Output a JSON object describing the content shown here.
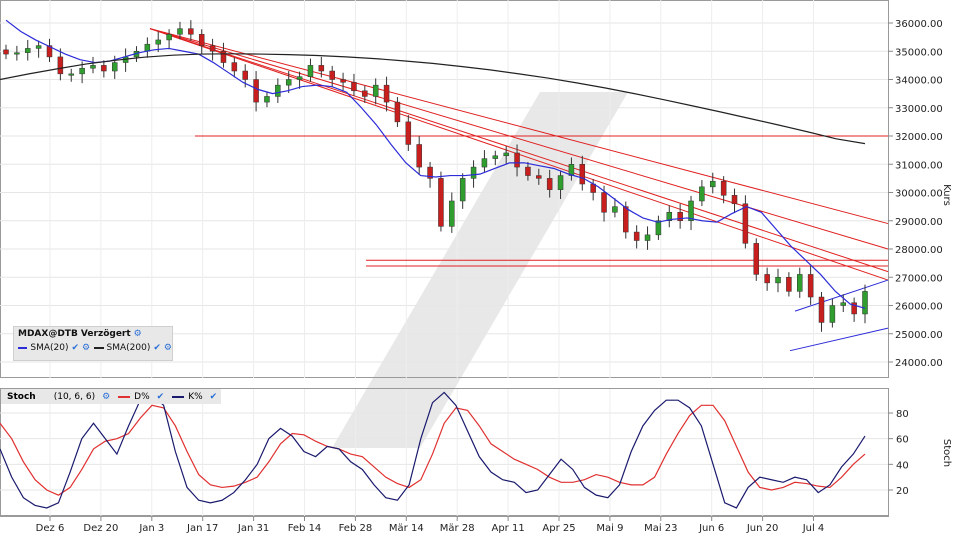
{
  "chart_data": [
    {
      "type": "candlestick",
      "title": "MDAX@DTB Verzögert",
      "ylabel": "Kurs",
      "ylim": [
        23400,
        36800
      ],
      "yticks": [
        "36000.00",
        "35000.00",
        "34000.00",
        "33000.00",
        "32000.00",
        "31000.00",
        "30000.00",
        "29000.00",
        "28000.00",
        "27000.00",
        "26000.00",
        "25000.00",
        "24000.00"
      ],
      "legend": [
        {
          "name": "SMA(20)",
          "color": "#2b2bd8"
        },
        {
          "name": "SMA(200)",
          "color": "#222222"
        }
      ],
      "series": [
        {
          "name": "SMA(20)",
          "color": "#2b2bd8",
          "values": [
            36100,
            35700,
            35400,
            35150,
            34900,
            34700,
            34600,
            34650,
            34800,
            34950,
            35050,
            35100,
            35000,
            34900,
            34600,
            34250,
            33900,
            33650,
            33500,
            33600,
            33750,
            33800,
            33750,
            33550,
            33000,
            32400,
            31700,
            31050,
            30600,
            30550,
            30600,
            30600,
            30650,
            30850,
            31050,
            31050,
            30950,
            30850,
            30650,
            30500,
            30200,
            29800,
            29400,
            29100,
            28950,
            29050,
            29100,
            29000,
            28950,
            29250,
            29500,
            29300,
            28700,
            28100,
            27600,
            27100,
            26500,
            26050,
            25900
          ]
        },
        {
          "name": "SMA(200)",
          "color": "#222222",
          "values": [
            34000,
            34200,
            34380,
            34550,
            34680,
            34790,
            34860,
            34900,
            34910,
            34900,
            34880,
            34850,
            34800,
            34740,
            34660,
            34570,
            34460,
            34340,
            34200,
            34050,
            33880,
            33700,
            33500,
            33290,
            33070,
            32850,
            32620,
            32390,
            32150,
            31900,
            31730
          ]
        }
      ],
      "candles": {
        "color_up": "#2f9e2f",
        "color_down": "#c81e1e",
        "close": [
          34900,
          34950,
          35100,
          35200,
          34800,
          34200,
          34200,
          34400,
          34500,
          34300,
          34600,
          34800,
          35000,
          35250,
          35400,
          35600,
          35800,
          35600,
          35200,
          35000,
          34600,
          34300,
          34000,
          33200,
          33400,
          33800,
          34000,
          34100,
          34500,
          34300,
          34000,
          33900,
          33600,
          33400,
          33800,
          33200,
          32500,
          31700,
          30900,
          30500,
          28800,
          29700,
          30500,
          30900,
          31200,
          31300,
          31400,
          30900,
          30600,
          30500,
          30100,
          30600,
          31000,
          30300,
          30000,
          29300,
          29500,
          28600,
          28300,
          28500,
          29000,
          29300,
          29000,
          29700,
          30200,
          30400,
          29900,
          29600,
          28200,
          27100,
          26800,
          27000,
          26500,
          27100,
          26300,
          25400,
          26000,
          26100,
          25700,
          26500
        ]
      },
      "overlays": {
        "resistance_levels": [
          32000,
          27600,
          27400
        ],
        "trend_channel": {
          "upper": [
            25800,
            26900
          ],
          "lower": [
            24400,
            25200
          ]
        }
      },
      "xticks": [
        "Dez 6",
        "Dez 20",
        "Jan 3",
        "Jan 17",
        "Jan 31",
        "Feb 14",
        "Feb 28",
        "Mär 14",
        "Mär 28",
        "Apr 11",
        "Apr 25",
        "Mai 9",
        "Mai 23",
        "Jun 6",
        "Jun 20",
        "Jul 4"
      ]
    },
    {
      "type": "line",
      "title": "Stoch",
      "params": "(10, 6, 6)",
      "ylabel": "Stoch",
      "ylim": [
        0,
        100
      ],
      "yticks": [
        "80",
        "60",
        "40",
        "20"
      ],
      "series": [
        {
          "name": "D%",
          "color": "#e03030",
          "values": [
            72,
            60,
            42,
            28,
            20,
            16,
            22,
            36,
            52,
            58,
            60,
            64,
            76,
            86,
            84,
            70,
            50,
            32,
            24,
            22,
            23,
            26,
            30,
            42,
            56,
            64,
            63,
            58,
            54,
            52,
            48,
            46,
            38,
            30,
            25,
            22,
            28,
            48,
            72,
            84,
            82,
            70,
            56,
            50,
            44,
            40,
            36,
            30,
            26,
            26,
            28,
            32,
            30,
            26,
            24,
            24,
            30,
            48,
            64,
            78,
            86,
            86,
            74,
            54,
            34,
            22,
            20,
            22,
            26,
            25,
            23,
            22,
            30,
            40,
            48
          ]
        },
        {
          "name": "K%",
          "color": "#1a1a6e",
          "values": [
            52,
            30,
            14,
            8,
            6,
            10,
            34,
            60,
            72,
            60,
            48,
            70,
            90,
            94,
            86,
            50,
            22,
            12,
            10,
            12,
            18,
            28,
            40,
            60,
            68,
            62,
            50,
            46,
            54,
            52,
            42,
            36,
            24,
            14,
            12,
            24,
            60,
            88,
            96,
            86,
            66,
            46,
            34,
            28,
            26,
            18,
            20,
            32,
            44,
            36,
            22,
            16,
            14,
            24,
            50,
            70,
            82,
            90,
            90,
            84,
            70,
            40,
            10,
            6,
            22,
            30,
            28,
            26,
            30,
            28,
            18,
            24,
            38,
            48,
            62
          ]
        }
      ],
      "xticks": [
        "Dez 6",
        "Dez 20",
        "Jan 3",
        "Jan 17",
        "Jan 31",
        "Feb 14",
        "Feb 28",
        "Mär 14",
        "Mär 28",
        "Apr 11",
        "Apr 25",
        "Mai 9",
        "Mai 23",
        "Jun 6",
        "Jun 20",
        "Jul 4"
      ]
    }
  ]
}
